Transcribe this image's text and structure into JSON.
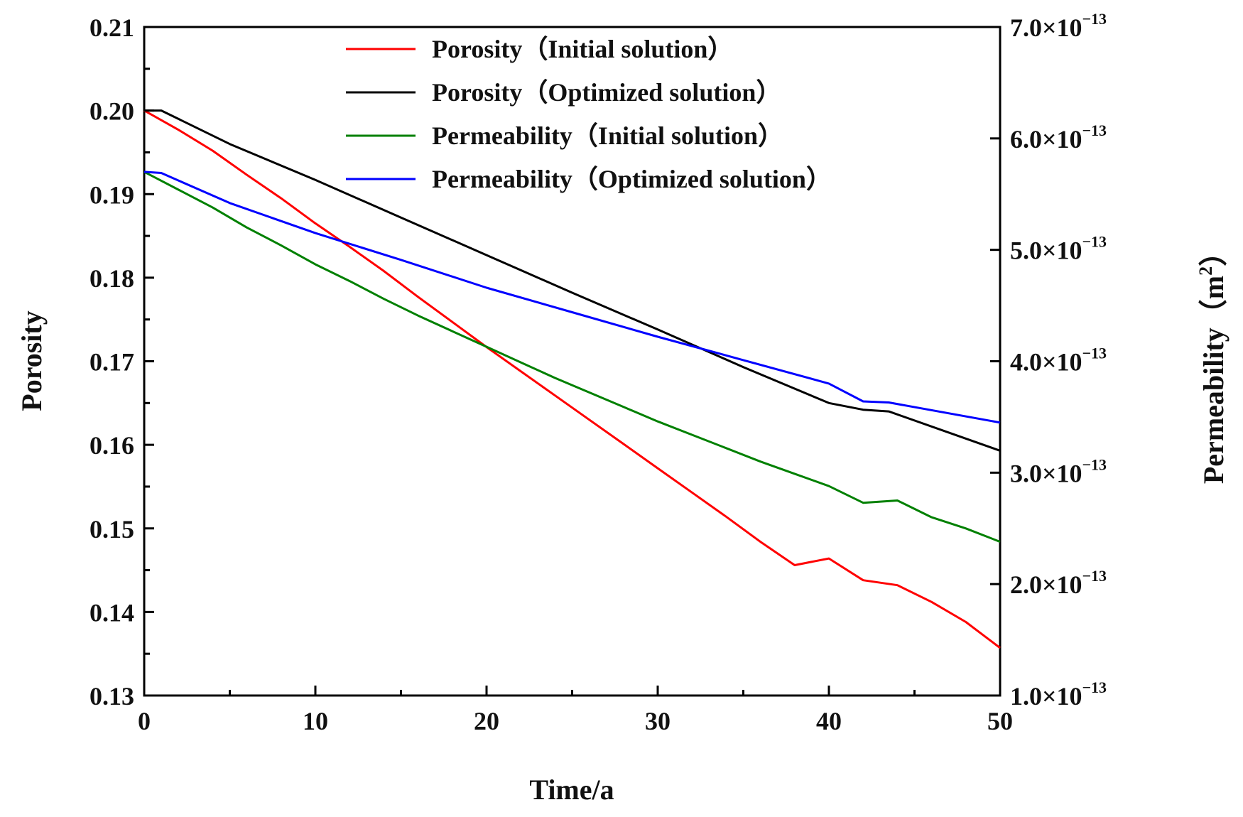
{
  "chart_data": {
    "type": "line",
    "title": "",
    "xlabel": "Time/a",
    "ylabel_left": "Porosity",
    "ylabel_right": "Permeability（m2）",
    "xlim": [
      0,
      50
    ],
    "ylim_left": [
      0.13,
      0.21
    ],
    "ylim_right": [
      1e-13,
      7e-13
    ],
    "grid": false,
    "legend_position": "top",
    "x_ticks": [
      {
        "value": 0,
        "label": "0"
      },
      {
        "value": 10,
        "label": "10"
      },
      {
        "value": 20,
        "label": "20"
      },
      {
        "value": 30,
        "label": "30"
      },
      {
        "value": 40,
        "label": "40"
      },
      {
        "value": 50,
        "label": "50"
      }
    ],
    "x_minor_ticks": [
      5,
      15,
      25,
      35,
      45
    ],
    "y_left_ticks": [
      {
        "value": 0.13,
        "label": "0.13"
      },
      {
        "value": 0.14,
        "label": "0.14"
      },
      {
        "value": 0.15,
        "label": "0.15"
      },
      {
        "value": 0.16,
        "label": "0.16"
      },
      {
        "value": 0.17,
        "label": "0.17"
      },
      {
        "value": 0.18,
        "label": "0.18"
      },
      {
        "value": 0.19,
        "label": "0.19"
      },
      {
        "value": 0.2,
        "label": "0.20"
      },
      {
        "value": 0.21,
        "label": "0.21"
      }
    ],
    "y_left_minor_ticks": [
      0.135,
      0.145,
      0.155,
      0.165,
      0.175,
      0.185,
      0.195,
      0.205
    ],
    "y_right_ticks": [
      {
        "value": 1e-13,
        "mantissa": "1.0",
        "base": "×10",
        "exp": "−13"
      },
      {
        "value": 2e-13,
        "mantissa": "2.0",
        "base": "×10",
        "exp": "−13"
      },
      {
        "value": 3e-13,
        "mantissa": "3.0",
        "base": "×10",
        "exp": "−13"
      },
      {
        "value": 4e-13,
        "mantissa": "4.0",
        "base": "×10",
        "exp": "−13"
      },
      {
        "value": 5e-13,
        "mantissa": "5.0",
        "base": "×10",
        "exp": "−13"
      },
      {
        "value": 6e-13,
        "mantissa": "6.0",
        "base": "×10",
        "exp": "−13"
      },
      {
        "value": 7e-13,
        "mantissa": "7.0",
        "base": "×10",
        "exp": "−13"
      }
    ],
    "series": [
      {
        "name": "Porosity（Initial solution）",
        "color": "#ff0000",
        "axis": "left",
        "x": [
          0,
          2,
          4,
          6,
          8,
          10,
          12,
          14,
          16,
          18,
          20,
          22,
          24,
          26,
          28,
          30,
          32,
          34,
          36,
          38,
          40,
          42,
          44,
          46,
          48,
          50
        ],
        "y": [
          0.2,
          0.1977,
          0.1952,
          0.1923,
          0.1895,
          0.1865,
          0.1837,
          0.1808,
          0.1777,
          0.1747,
          0.1717,
          0.1688,
          0.1659,
          0.163,
          0.1601,
          0.1572,
          0.1543,
          0.1514,
          0.1484,
          0.1456,
          0.1464,
          0.1438,
          0.1432,
          0.1412,
          0.1388,
          0.1357
        ]
      },
      {
        "name": "Porosity（Optimized solution）",
        "color": "#000000",
        "axis": "left",
        "x": [
          0,
          1,
          5,
          10,
          15,
          20,
          25,
          30,
          35,
          40,
          42,
          43.5,
          50
        ],
        "y": [
          0.2,
          0.2,
          0.196,
          0.1917,
          0.1872,
          0.1827,
          0.1782,
          0.1738,
          0.1693,
          0.165,
          0.1642,
          0.164,
          0.1593
        ]
      },
      {
        "name": "Permeability（Initial solution）",
        "color": "#008000",
        "axis": "right",
        "x": [
          0,
          2,
          4,
          6,
          8,
          10,
          12,
          14,
          16,
          18,
          20,
          22,
          24,
          26,
          28,
          30,
          32,
          34,
          36,
          38,
          40,
          42,
          44,
          46,
          48,
          50
        ],
        "y": [
          5.7e-13,
          5.54e-13,
          5.38e-13,
          5.2e-13,
          5.04e-13,
          4.87e-13,
          4.72e-13,
          4.56e-13,
          4.41e-13,
          4.27e-13,
          4.13e-13,
          3.99e-13,
          3.85e-13,
          3.72e-13,
          3.59e-13,
          3.46e-13,
          3.34e-13,
          3.22e-13,
          3.1e-13,
          2.99e-13,
          2.88e-13,
          2.73e-13,
          2.75e-13,
          2.6e-13,
          2.5e-13,
          2.38e-13
        ]
      },
      {
        "name": "Permeability（Optimized solution）",
        "color": "#0000ff",
        "axis": "right",
        "x": [
          0,
          1,
          5,
          10,
          15,
          20,
          25,
          30,
          35,
          40,
          42,
          43.5,
          50
        ],
        "y": [
          5.7e-13,
          5.69e-13,
          5.42e-13,
          5.15e-13,
          4.91e-13,
          4.66e-13,
          4.44e-13,
          4.22e-13,
          4.01e-13,
          3.8e-13,
          3.64e-13,
          3.63e-13,
          3.45e-13
        ]
      }
    ]
  }
}
